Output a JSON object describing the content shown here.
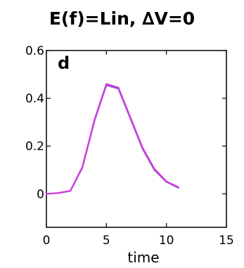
{
  "chart_data": {
    "type": "line",
    "title": "E(f)=Lin, ∆V=0",
    "panel_label": "d",
    "xlabel": "time",
    "ylabel": "",
    "xlim": [
      0,
      15
    ],
    "ylim": [
      -0.14,
      0.6
    ],
    "x_ticks": [
      0,
      5,
      10,
      15
    ],
    "x_tick_labels": [
      "0",
      "5",
      "10",
      "15"
    ],
    "y_ticks": [
      0,
      0.2,
      0.4,
      0.6
    ],
    "y_tick_labels": [
      "0",
      "0.2",
      "0.4",
      "0.6"
    ],
    "grid": false,
    "series": [
      {
        "color": "#7b5fc9",
        "x": [
          0,
          1,
          2,
          3,
          4,
          5,
          6,
          7,
          8,
          9,
          10,
          11
        ],
        "y": [
          0.0,
          0.003,
          0.012,
          0.11,
          0.305,
          0.455,
          0.44,
          0.315,
          0.19,
          0.1,
          0.05,
          0.025
        ]
      },
      {
        "color": "#d63ae0",
        "x": [
          0,
          1,
          2,
          3,
          4,
          5,
          6,
          7,
          8,
          9,
          10,
          11
        ],
        "y": [
          0.0,
          0.004,
          0.013,
          0.113,
          0.31,
          0.46,
          0.445,
          0.32,
          0.195,
          0.105,
          0.052,
          0.028
        ]
      }
    ]
  }
}
